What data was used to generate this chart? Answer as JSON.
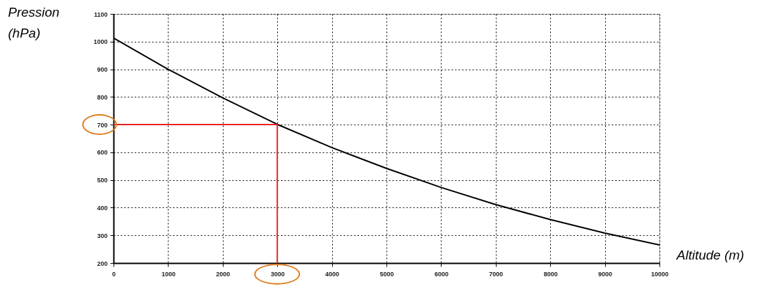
{
  "chart_data": {
    "type": "line",
    "xlabel": "Altitude (m)",
    "ylabel": "Pression (hPa)",
    "xlim": [
      0,
      10000
    ],
    "ylim": [
      200,
      1100
    ],
    "xticks": [
      0,
      1000,
      2000,
      3000,
      4000,
      5000,
      6000,
      7000,
      8000,
      9000,
      10000
    ],
    "yticks": [
      200,
      300,
      400,
      500,
      600,
      700,
      800,
      900,
      1000,
      1100
    ],
    "grid": true,
    "series": [
      {
        "color": "#000000",
        "x": [
          0,
          1000,
          2000,
          3000,
          4000,
          5000,
          6000,
          7000,
          8000,
          9000,
          10000
        ],
        "values": [
          1013,
          900,
          797,
          701,
          617,
          542,
          473,
          411,
          357,
          308,
          265
        ]
      },
      {
        "color": "#e8231e",
        "x": [
          0,
          3000,
          3000
        ],
        "values": [
          700,
          700,
          200
        ]
      }
    ]
  }
}
